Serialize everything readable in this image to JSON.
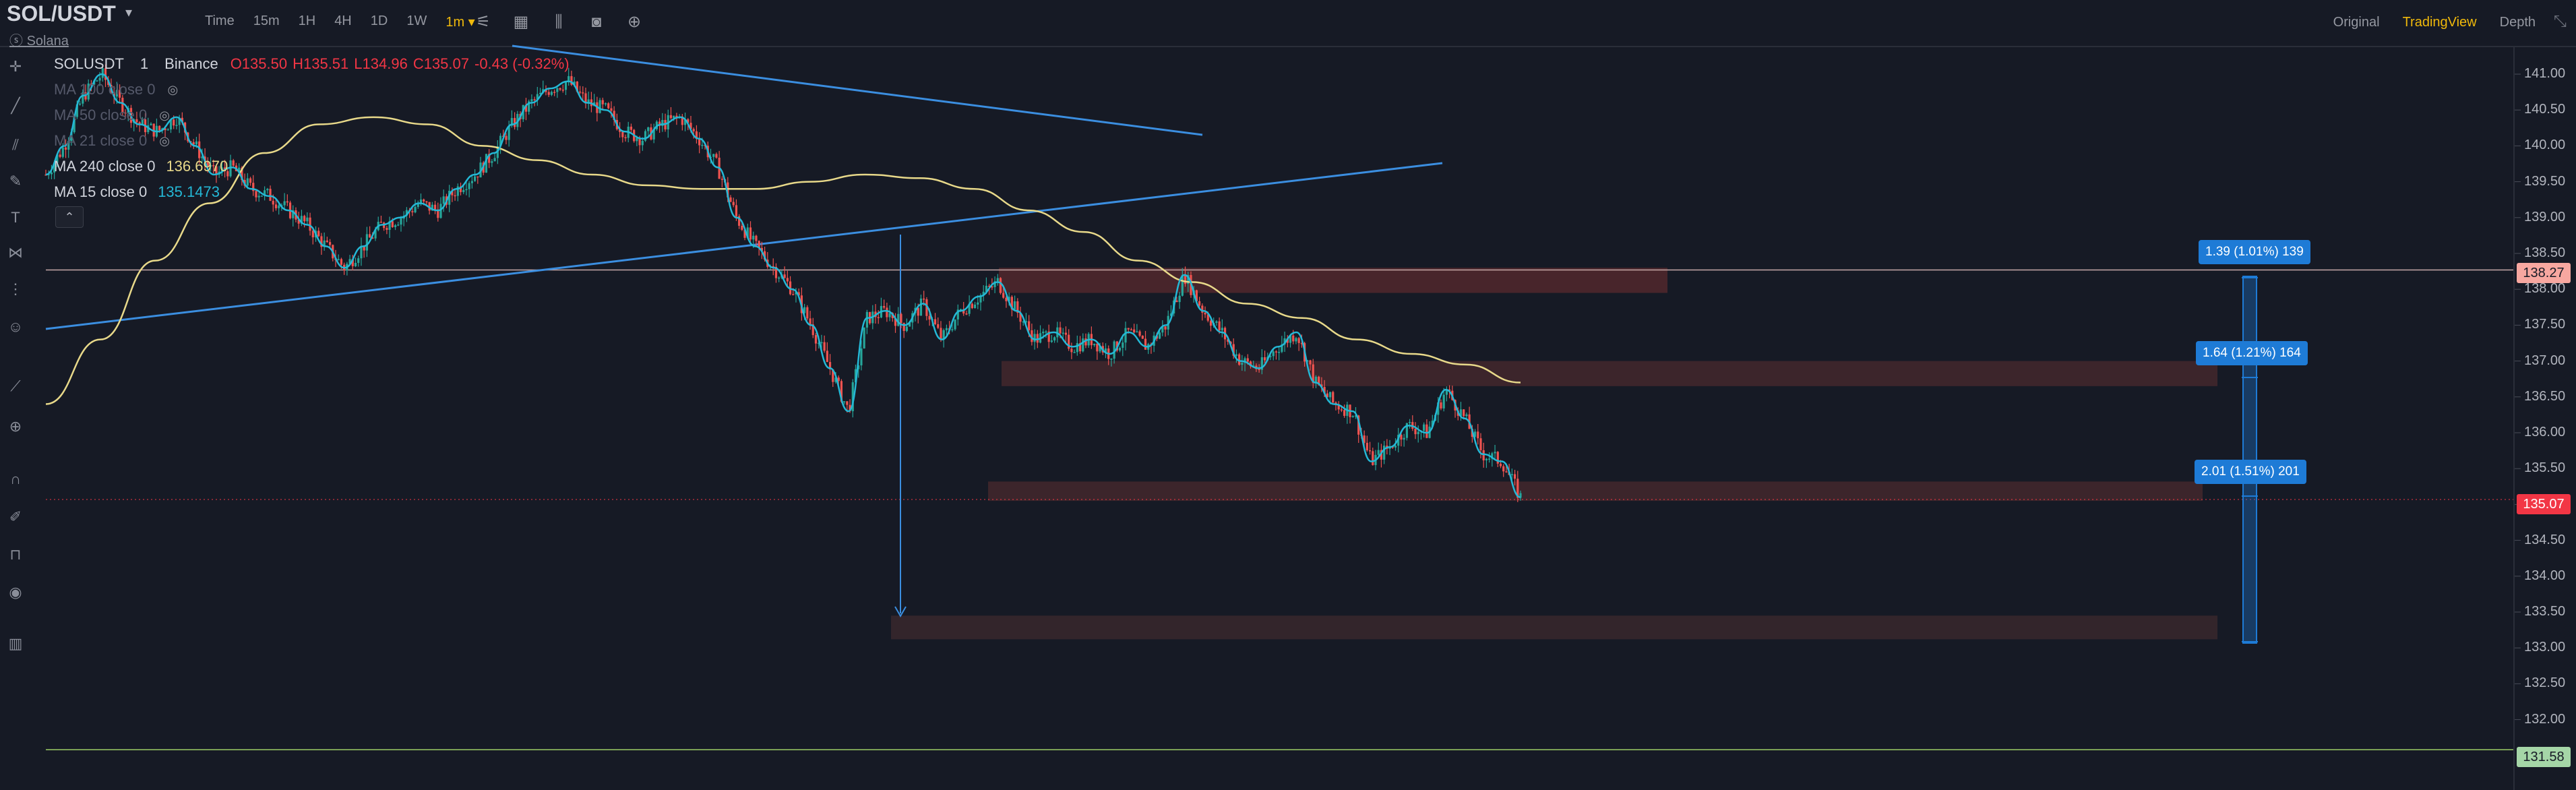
{
  "header": {
    "pair": "SOL/USDT",
    "coin_name": "Solana",
    "intervals": [
      "Time",
      "15m",
      "1H",
      "4H",
      "1D",
      "1W",
      "1m ▾"
    ],
    "active_interval_index": 6,
    "views": [
      "Original",
      "TradingView",
      "Depth"
    ],
    "active_view_index": 1
  },
  "legend": {
    "symbol": "SOLUSDT",
    "interval": "1",
    "exchange": "Binance",
    "open": "O135.50",
    "high": "H135.51",
    "low": "L134.96",
    "close": "C135.07",
    "change": "-0.43 (-0.32%)",
    "ma100": "MA 100 close 0",
    "ma50": "MA 50 close 0",
    "ma21": "MA 21 close 0",
    "ma240_label": "MA 240 close 0",
    "ma240_value": "136.6970",
    "ma15_label": "MA 15 close 0",
    "ma15_value": "135.1473"
  },
  "price_axis": {
    "ticks": [
      "141.00",
      "140.50",
      "140.00",
      "139.50",
      "139.00",
      "138.50",
      "138.00",
      "137.50",
      "137.00",
      "136.50",
      "136.00",
      "135.50",
      "135.00",
      "134.50",
      "134.00",
      "133.50",
      "133.00",
      "132.50",
      "132.00"
    ],
    "badge_high": "138.27",
    "badge_last": "135.07",
    "badge_low": "131.58"
  },
  "measurements": [
    {
      "label": "1.39 (1.01%) 139"
    },
    {
      "label": "1.64 (1.21%) 164"
    },
    {
      "label": "2.01 (1.51%) 201"
    }
  ],
  "colors": {
    "background": "#161a25",
    "up": "#26a69a",
    "down": "#ef5350",
    "ma240": "#e8d98a",
    "ma15": "#24b8d6",
    "trendline": "#3b8ee0",
    "accent": "#f0b90b"
  },
  "chart_data": {
    "type": "candlestick",
    "interval": "1m",
    "ylim": [
      131.5,
      141.4
    ],
    "close_path": [
      139.6,
      140.0,
      140.7,
      141.0,
      140.6,
      140.3,
      140.2,
      140.4,
      140.0,
      139.6,
      139.7,
      139.4,
      139.3,
      139.1,
      138.9,
      138.6,
      138.3,
      138.6,
      138.9,
      139.0,
      139.2,
      139.1,
      139.4,
      139.6,
      139.9,
      140.3,
      140.6,
      140.8,
      140.9,
      140.6,
      140.5,
      140.2,
      140.1,
      140.3,
      140.4,
      140.1,
      139.7,
      139.0,
      138.6,
      138.3,
      138.0,
      137.5,
      136.9,
      136.3,
      137.6,
      137.7,
      137.5,
      137.8,
      137.3,
      137.7,
      137.9,
      138.1,
      137.7,
      137.3,
      137.4,
      137.2,
      137.3,
      137.1,
      137.4,
      137.2,
      137.5,
      138.2,
      137.7,
      137.4,
      137.0,
      136.9,
      137.2,
      137.4,
      136.7,
      136.4,
      136.3,
      135.6,
      135.8,
      136.1,
      136.0,
      136.6,
      136.2,
      135.7,
      135.6,
      135.1
    ],
    "ma240_path": [
      136.4,
      137.3,
      138.4,
      139.2,
      139.9,
      140.3,
      140.4,
      140.3,
      140.0,
      139.8,
      139.6,
      139.45,
      139.4,
      139.4,
      139.5,
      139.6,
      139.55,
      139.4,
      139.1,
      138.8,
      138.4,
      138.1,
      137.8,
      137.6,
      137.3,
      137.1,
      136.95,
      136.7
    ],
    "series": [
      {
        "name": "MA 240 close 0",
        "last": 136.697
      },
      {
        "name": "MA 15 close 0",
        "last": 135.1473
      }
    ],
    "horizontal_lines": [
      138.27,
      131.58
    ],
    "zones": [
      [
        137.95,
        138.3
      ],
      [
        136.65,
        137.0
      ],
      [
        135.05,
        135.32
      ],
      [
        133.12,
        133.45
      ]
    ]
  }
}
